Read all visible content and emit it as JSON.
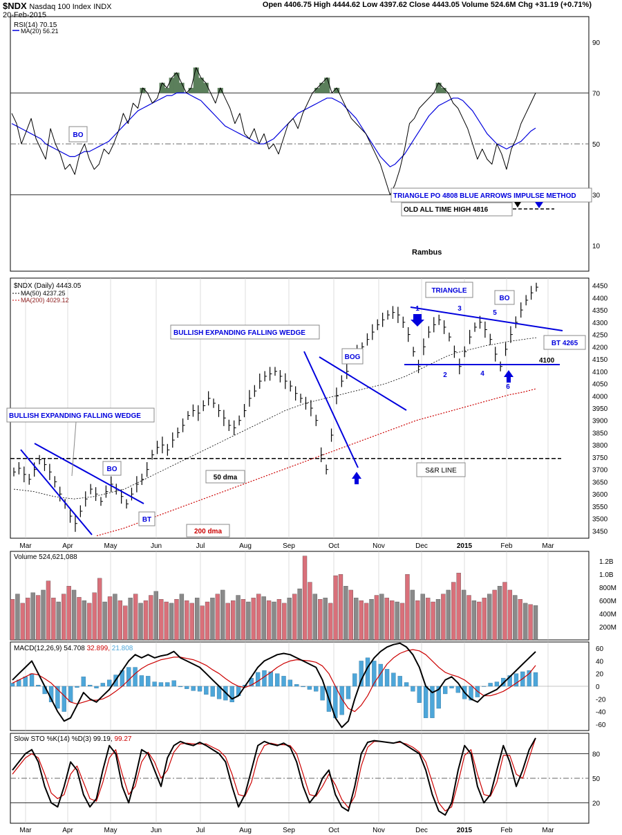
{
  "header": {
    "symbol": "$NDX",
    "name": "Nasdaq 100 Index",
    "exchange": "INDX",
    "date": "20-Feb-2015",
    "ohlc_text": "Open 4406.75  High 4444.62  Low 4397.62  Close 4443.05  Volume 524.6M  Chg +31.19 (+0.71%)"
  },
  "colors": {
    "blue": "#0000dd",
    "red": "#cc0000",
    "black": "#000000",
    "green_fill": "#5b7f5b",
    "vol_red": "#d9707a",
    "vol_gray": "#8a8a8a",
    "hist_blue": "#4da6d9",
    "grid": "#c8c8c8"
  },
  "watermark": "Rambus",
  "months": [
    "Mar",
    "Apr",
    "May",
    "Jun",
    "Jul",
    "Aug",
    "Sep",
    "Oct",
    "Nov",
    "Dec",
    "2015",
    "Feb",
    "Mar"
  ],
  "chart_data": [
    {
      "type": "line",
      "panel": "rsi",
      "legend": [
        "RSI(14) 70.15",
        "MA(20) 56.21"
      ],
      "ylim": [
        0,
        100
      ],
      "ticks": [
        10,
        30,
        50,
        70,
        90
      ],
      "ref_lines": [
        30,
        50,
        70
      ],
      "rsi": [
        62,
        58,
        50,
        55,
        60,
        52,
        48,
        44,
        56,
        50,
        46,
        40,
        42,
        38,
        46,
        50,
        44,
        40,
        42,
        48,
        46,
        50,
        55,
        62,
        58,
        66,
        64,
        72,
        70,
        66,
        68,
        74,
        72,
        76,
        78,
        74,
        70,
        72,
        80,
        76,
        74,
        70,
        66,
        72,
        68,
        64,
        58,
        62,
        54,
        52,
        56,
        50,
        54,
        48,
        50,
        46,
        52,
        58,
        60,
        56,
        62,
        66,
        70,
        72,
        74,
        76,
        70,
        72,
        68,
        64,
        60,
        58,
        56,
        54,
        50,
        46,
        42,
        36,
        30,
        34,
        40,
        48,
        58,
        60,
        64,
        66,
        68,
        70,
        74,
        72,
        70,
        66,
        64,
        60,
        56,
        50,
        44,
        48,
        44,
        42,
        50,
        46,
        40,
        48,
        52,
        58,
        62,
        66,
        70
      ],
      "rsi_ma": [
        58,
        57,
        56,
        55,
        54,
        53,
        52,
        50,
        49,
        48,
        47,
        46,
        45,
        45,
        46,
        47,
        47,
        48,
        49,
        50,
        51,
        53,
        55,
        57,
        59,
        61,
        63,
        64,
        65,
        66,
        67,
        68,
        69,
        69,
        70,
        70,
        70,
        69,
        68,
        67,
        65,
        63,
        61,
        59,
        57,
        56,
        55,
        54,
        53,
        52,
        51,
        50,
        50,
        51,
        52,
        54,
        56,
        58,
        60,
        62,
        63,
        64,
        65,
        66,
        67,
        68,
        68,
        67,
        66,
        64,
        62,
        60,
        57,
        54,
        51,
        48,
        45,
        43,
        41,
        42,
        44,
        46,
        49,
        52,
        55,
        58,
        61,
        63,
        65,
        66,
        67,
        68,
        68,
        67,
        65,
        63,
        60,
        57,
        54,
        52,
        50,
        49,
        48,
        49,
        50,
        51,
        53,
        55,
        56.21
      ]
    },
    {
      "type": "line",
      "panel": "price",
      "legend": [
        "$NDX (Daily) 4443.05",
        "MA(50) 4237.25",
        "MA(200) 4029.12"
      ],
      "ylim": [
        3420,
        4480
      ],
      "ticks": [
        3450,
        3500,
        3550,
        3600,
        3650,
        3700,
        3750,
        3800,
        3850,
        3900,
        3950,
        4000,
        4050,
        4100,
        4150,
        4200,
        4250,
        4300,
        4350,
        4400,
        4450
      ],
      "close": [
        3690,
        3705,
        3680,
        3660,
        3700,
        3740,
        3720,
        3690,
        3650,
        3600,
        3560,
        3510,
        3480,
        3530,
        3580,
        3620,
        3600,
        3570,
        3610,
        3640,
        3620,
        3590,
        3560,
        3600,
        3640,
        3660,
        3700,
        3760,
        3790,
        3800,
        3780,
        3820,
        3850,
        3880,
        3920,
        3940,
        3930,
        3960,
        3990,
        3970,
        3940,
        3910,
        3880,
        3870,
        3900,
        3940,
        3990,
        4020,
        4060,
        4080,
        4090,
        4100,
        4080,
        4060,
        4040,
        4010,
        3990,
        3970,
        3950,
        3900,
        3760,
        3700,
        3840,
        4000,
        4060,
        4100,
        4150,
        4180,
        4200,
        4230,
        4260,
        4290,
        4310,
        4330,
        4340,
        4330,
        4300,
        4250,
        4180,
        4120,
        4200,
        4260,
        4290,
        4310,
        4280,
        4240,
        4180,
        4120,
        4180,
        4240,
        4280,
        4300,
        4270,
        4230,
        4170,
        4120,
        4190,
        4250,
        4300,
        4350,
        4390,
        4420,
        4443.05
      ],
      "ma50": [
        3620,
        3615,
        3610,
        3600,
        3590,
        3585,
        3580,
        3585,
        3590,
        3600,
        3610,
        3620,
        3640,
        3660,
        3680,
        3700,
        3720,
        3740,
        3760,
        3780,
        3800,
        3820,
        3840,
        3860,
        3880,
        3900,
        3920,
        3940,
        3955,
        3970,
        3980,
        3990,
        4000,
        4010,
        4020,
        4030,
        4040,
        4050,
        4065,
        4080,
        4100,
        4120,
        4140,
        4160,
        4175,
        4185,
        4195,
        4205,
        4212,
        4220,
        4226,
        4232,
        4237.25
      ],
      "ma200": [
        3430,
        3445,
        3460,
        3480,
        3500,
        3520,
        3540,
        3560,
        3580,
        3600,
        3620,
        3640,
        3660,
        3680,
        3700,
        3720,
        3740,
        3760,
        3780,
        3800,
        3820,
        3840,
        3860,
        3880,
        3900,
        3915,
        3930,
        3945,
        3960,
        3975,
        3990,
        4005,
        4015,
        4029.12
      ],
      "annotations": [
        "BULLISH EXPANDING FALLING WEDGE",
        "BO",
        "BT",
        "50 dma",
        "200 dma",
        "BULLISH EXPANDING FALLING WEDGE",
        "BOG",
        "S&R LINE",
        "TRIANGLE",
        "BO",
        "BT 4265",
        "4100",
        "TRIANGLE PO 4808 BLUE ARROWS IMPULSE METHOD",
        "OLD ALL TIME HIGH 4816"
      ],
      "triangle_points": [
        "1",
        "2",
        "3",
        "4",
        "5",
        "6"
      ]
    },
    {
      "type": "bar",
      "panel": "volume",
      "legend": [
        "Volume 524,621,088"
      ],
      "ticks": [
        "200M",
        "400M",
        "600M",
        "800M",
        "1.0B",
        "1.2B"
      ],
      "ticks_values": [
        200,
        400,
        600,
        800,
        1000,
        1200
      ],
      "volume_m": [
        620,
        700,
        560,
        640,
        720,
        680,
        760,
        900,
        640,
        580,
        700,
        820,
        760,
        650,
        600,
        560,
        720,
        940,
        580,
        660,
        700,
        600,
        520,
        640,
        700,
        560,
        600,
        680,
        740,
        620,
        580,
        560,
        620,
        700,
        600,
        560,
        640,
        520,
        580,
        640,
        700,
        760,
        560,
        600,
        680,
        620,
        580,
        640,
        700,
        660,
        600,
        580,
        620,
        560,
        640,
        700,
        780,
        1280,
        880,
        700,
        620,
        640,
        560,
        980,
        1000,
        820,
        760,
        640,
        600,
        560,
        620,
        680,
        700,
        640,
        600,
        580,
        560,
        1000,
        760,
        600,
        700,
        640,
        580,
        620,
        700,
        760,
        880,
        1020,
        760,
        680,
        600,
        580,
        640,
        700,
        760,
        820,
        880,
        760,
        680,
        620,
        560,
        540,
        524
      ],
      "volume_up": [
        1,
        0,
        1,
        1,
        0,
        1,
        0,
        1,
        1,
        0,
        1,
        1,
        0,
        1,
        0,
        1,
        1,
        1,
        0,
        1,
        0,
        1,
        1,
        0,
        1,
        0,
        1,
        1,
        0,
        1,
        1,
        0,
        1,
        0,
        1,
        1,
        0,
        1,
        1,
        0,
        1,
        0,
        1,
        1,
        0,
        1,
        0,
        1,
        1,
        0,
        1,
        0,
        1,
        1,
        0,
        1,
        0,
        1,
        1,
        0,
        1,
        0,
        1,
        1,
        1,
        0,
        1,
        0,
        1,
        1,
        0,
        1,
        0,
        1,
        1,
        0,
        1,
        1,
        0,
        1,
        0,
        1,
        1,
        0,
        1,
        0,
        1,
        1,
        0,
        1,
        0,
        1,
        1,
        0,
        1,
        0,
        1,
        1,
        0,
        1,
        0,
        1,
        0
      ]
    },
    {
      "type": "line",
      "panel": "macd",
      "legend": [
        "MACD(12,26,9) 54.708",
        "32.899",
        "21.808"
      ],
      "ticks": [
        -60,
        -40,
        -20,
        0,
        20,
        40,
        60
      ],
      "macd": [
        10,
        20,
        30,
        40,
        20,
        0,
        -20,
        -40,
        -55,
        -50,
        -30,
        -10,
        -20,
        -25,
        -15,
        -5,
        10,
        25,
        40,
        50,
        45,
        50,
        45,
        48,
        50,
        55,
        45,
        40,
        35,
        30,
        20,
        10,
        0,
        -10,
        -20,
        -15,
        0,
        15,
        30,
        40,
        45,
        50,
        52,
        50,
        45,
        40,
        35,
        30,
        10,
        -20,
        -50,
        -65,
        -55,
        -20,
        10,
        30,
        45,
        55,
        62,
        66,
        68,
        62,
        50,
        30,
        0,
        -10,
        -5,
        10,
        15,
        5,
        -10,
        -20,
        -25,
        -15,
        -10,
        -5,
        5,
        15,
        25,
        35,
        45,
        54.708
      ],
      "signal": [
        5,
        10,
        15,
        20,
        18,
        12,
        5,
        -5,
        -15,
        -25,
        -28,
        -25,
        -22,
        -22,
        -20,
        -15,
        -8,
        0,
        10,
        20,
        28,
        34,
        38,
        42,
        44,
        46,
        46,
        44,
        42,
        38,
        33,
        26,
        20,
        12,
        5,
        0,
        -2,
        2,
        8,
        15,
        22,
        30,
        36,
        40,
        42,
        41,
        40,
        38,
        32,
        20,
        0,
        -20,
        -35,
        -40,
        -30,
        -15,
        5,
        20,
        35,
        45,
        52,
        56,
        58,
        56,
        50,
        40,
        30,
        22,
        18,
        15,
        10,
        2,
        -8,
        -15,
        -15,
        -12,
        -8,
        -2,
        5,
        12,
        20,
        32.899
      ],
      "hist": [
        5,
        10,
        15,
        20,
        2,
        -12,
        -25,
        -35,
        -40,
        -25,
        -2,
        15,
        2,
        -3,
        5,
        10,
        18,
        25,
        30,
        30,
        17,
        16,
        7,
        6,
        6,
        9,
        -1,
        -4,
        -7,
        -8,
        -13,
        -16,
        -20,
        -22,
        -25,
        -15,
        2,
        13,
        22,
        25,
        23,
        20,
        16,
        10,
        3,
        -1,
        -5,
        -8,
        -22,
        -40,
        -50,
        -45,
        -20,
        20,
        40,
        45,
        40,
        35,
        27,
        21,
        16,
        6,
        -8,
        -26,
        -50,
        -50,
        -35,
        -12,
        -3,
        -10,
        -20,
        -22,
        -17,
        0,
        5,
        7,
        13,
        17,
        20,
        23,
        25,
        21.808
      ]
    },
    {
      "type": "line",
      "panel": "stochastic",
      "legend": [
        "Slow STO %K(14) %D(3) 99.19",
        "99.27"
      ],
      "ylim": [
        0,
        100
      ],
      "ticks": [
        20,
        50,
        80
      ],
      "ref_lines": [
        20,
        50,
        80
      ],
      "k": [
        60,
        70,
        80,
        85,
        70,
        40,
        20,
        15,
        40,
        70,
        60,
        30,
        15,
        25,
        60,
        90,
        80,
        40,
        20,
        50,
        85,
        80,
        60,
        40,
        75,
        90,
        95,
        92,
        90,
        94,
        90,
        85,
        80,
        70,
        40,
        15,
        30,
        60,
        90,
        95,
        92,
        90,
        93,
        88,
        70,
        40,
        20,
        30,
        50,
        60,
        30,
        15,
        10,
        40,
        80,
        94,
        96,
        95,
        94,
        93,
        95,
        90,
        85,
        80,
        60,
        30,
        10,
        5,
        20,
        60,
        90,
        80,
        40,
        20,
        30,
        60,
        90,
        70,
        40,
        60,
        85,
        99.19
      ],
      "d": [
        55,
        65,
        75,
        80,
        75,
        55,
        32,
        25,
        30,
        55,
        65,
        45,
        25,
        22,
        45,
        75,
        85,
        55,
        30,
        40,
        70,
        82,
        70,
        50,
        60,
        82,
        92,
        93,
        92,
        92,
        92,
        88,
        84,
        76,
        55,
        30,
        28,
        45,
        75,
        90,
        93,
        91,
        91,
        90,
        80,
        55,
        30,
        28,
        40,
        55,
        42,
        24,
        14,
        28,
        65,
        88,
        95,
        95,
        94,
        93,
        94,
        92,
        88,
        82,
        70,
        45,
        20,
        10,
        15,
        45,
        78,
        85,
        55,
        30,
        28,
        45,
        78,
        78,
        55,
        50,
        75,
        99.27
      ]
    }
  ]
}
